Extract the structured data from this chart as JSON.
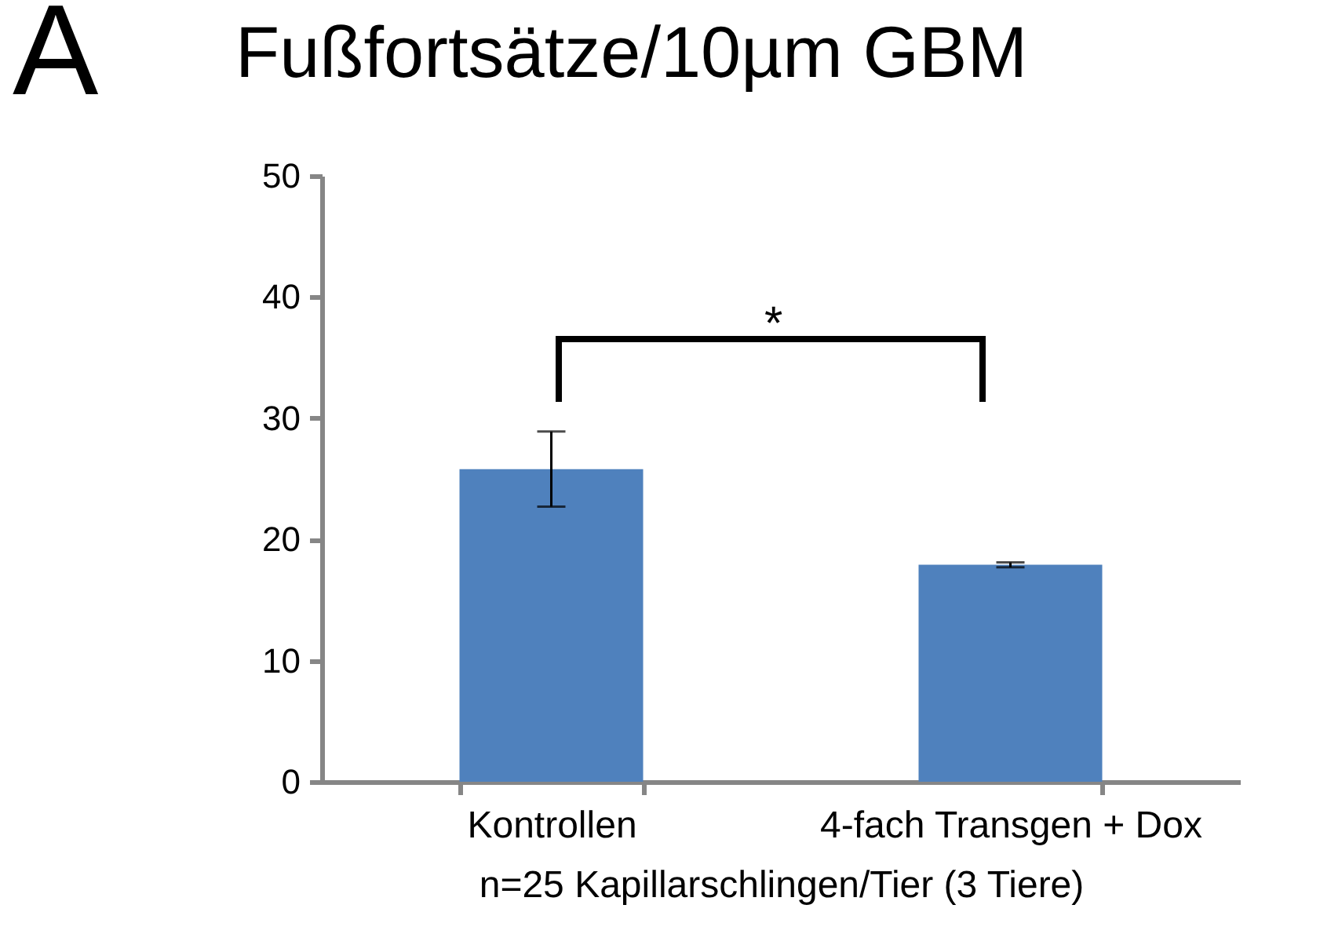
{
  "chart_data": {
    "type": "bar",
    "title": "Fußfortsätze/10µm GBM",
    "xlabel": "n=25 Kapillarschlingen/Tier (3 Tiere)",
    "categories": [
      "Kontrollen",
      "4-fach Transgen + Dox"
    ],
    "values": [
      25.8,
      17.9
    ],
    "errors": [
      3.1,
      0.2
    ],
    "color": "#4f81bd",
    "ylim": [
      0,
      50
    ],
    "yticks": [
      0,
      10,
      20,
      30,
      40,
      50
    ],
    "grid": false,
    "annotations": [
      "A",
      "*"
    ]
  }
}
